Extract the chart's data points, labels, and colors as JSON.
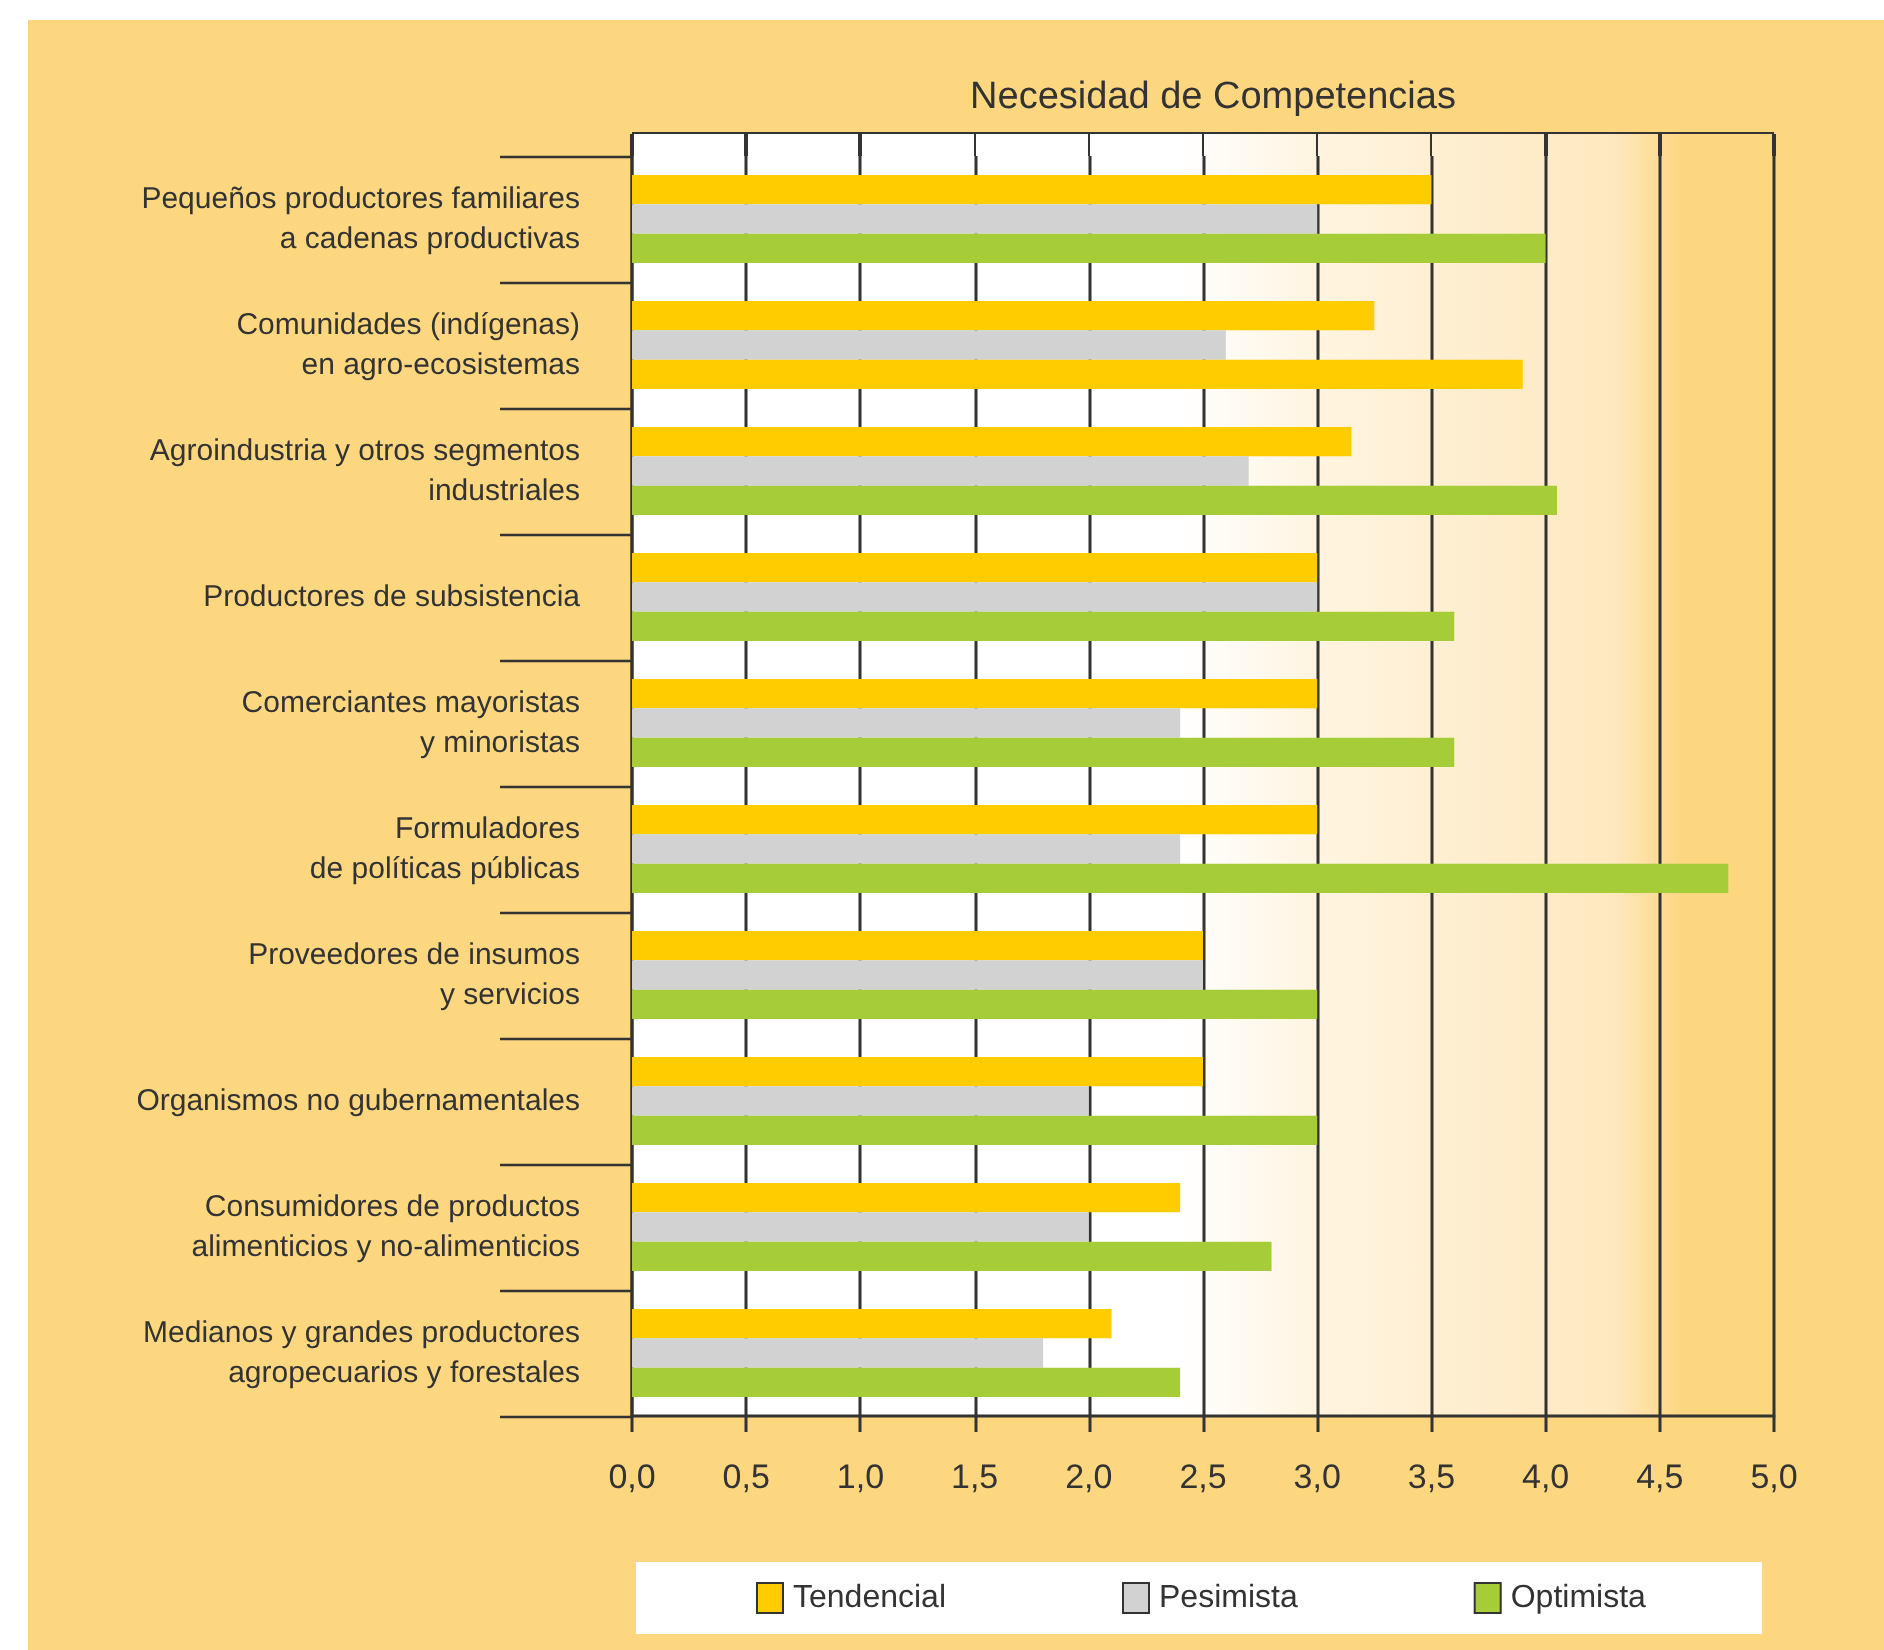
{
  "chart_data": {
    "type": "bar",
    "orientation": "horizontal",
    "title": "Necesidad de Competencias",
    "categories": [
      "Pequeños productores familiares\na cadenas productivas",
      "Comunidades (indígenas)\nen agro-ecosistemas",
      "Agroindustria y otros segmentos\nindustriales",
      "Productores de subsistencia",
      "Comerciantes mayoristas\ny minoristas",
      "Formuladores\nde políticas públicas",
      "Proveedores de insumos\ny servicios",
      "Organismos no gubernamentales",
      "Consumidores de productos\nalimenticios y no-alimenticios",
      "Medianos y grandes productores\nagropecuarios y forestales"
    ],
    "series": [
      {
        "name": "Tendencial",
        "color": "#ffcc00",
        "values": [
          3.5,
          3.25,
          3.15,
          3.0,
          3.0,
          3.0,
          2.5,
          2.5,
          2.4,
          2.1
        ]
      },
      {
        "name": "Pesimista",
        "color": "#d2d2d2",
        "values": [
          3.0,
          2.6,
          2.7,
          3.0,
          2.4,
          2.4,
          2.5,
          2.0,
          2.0,
          1.8
        ]
      },
      {
        "name": "Optimista",
        "color": "#a6cd38",
        "colors": [
          "#a6cd38",
          "#ffcc00",
          "#a6cd38",
          "#a6cd38",
          "#a6cd38",
          "#a6cd38",
          "#a6cd38",
          "#a6cd38",
          "#a6cd38",
          "#a6cd38"
        ],
        "values": [
          4.0,
          3.9,
          4.05,
          3.6,
          3.6,
          4.8,
          3.0,
          3.0,
          2.8,
          2.4
        ]
      }
    ],
    "xlim": [
      0,
      5
    ],
    "xticks": [
      {
        "value": 0,
        "label": "0,0"
      },
      {
        "value": 0.5,
        "label": "0,5"
      },
      {
        "value": 1,
        "label": "1,0"
      },
      {
        "value": 1.5,
        "label": "1,5"
      },
      {
        "value": 2,
        "label": "2,0"
      },
      {
        "value": 2.5,
        "label": "2,5"
      },
      {
        "value": 3,
        "label": "3,0"
      },
      {
        "value": 3.5,
        "label": "3,5"
      },
      {
        "value": 4,
        "label": "4,0"
      },
      {
        "value": 4.5,
        "label": "4,5"
      },
      {
        "value": 5,
        "label": "5,0"
      }
    ],
    "grid": "x",
    "legend": "bottom"
  }
}
